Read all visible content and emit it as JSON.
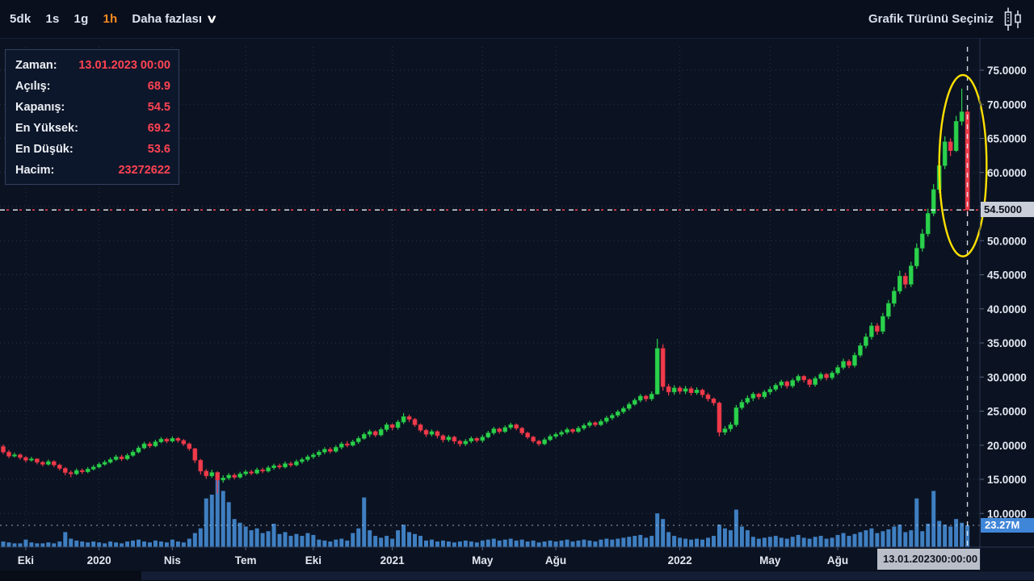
{
  "toolbar": {
    "intervals": [
      {
        "label": "5dk",
        "active": false
      },
      {
        "label": "1s",
        "active": false
      },
      {
        "label": "1g",
        "active": false
      },
      {
        "label": "1h",
        "active": true
      }
    ],
    "more_label": "Daha fazlası",
    "chart_type_label": "Grafik Türünü Seçiniz"
  },
  "info_panel": {
    "rows": [
      {
        "label": "Zaman:",
        "value": "13.01.2023 00:00"
      },
      {
        "label": "Açılış:",
        "value": "68.9"
      },
      {
        "label": "Kapanış:",
        "value": "54.5"
      },
      {
        "label": "En Yüksek:",
        "value": "69.2"
      },
      {
        "label": "En Düşük:",
        "value": "53.6"
      },
      {
        "label": "Hacim:",
        "value": "23272622"
      }
    ]
  },
  "badges": {
    "price": "54.5000",
    "volume": "23.27M",
    "date": "13.01.2023",
    "time": "00:00:00"
  },
  "colors": {
    "up": "#2bd14c",
    "up_stroke": "#1fae3c",
    "down": "#ef3b4b",
    "down_stroke": "#d32f3f",
    "volume_bar": "#3f7fc1",
    "accent_orange": "#ff8a1e",
    "value_red": "#ff4353",
    "annotation_yellow": "#ffe000",
    "axis_text": "#e3e8f1",
    "grid": "#3c4f74"
  },
  "chart_data": {
    "type": "candlestick",
    "price_ticks": [
      {
        "v": 75,
        "label": "75.0000"
      },
      {
        "v": 70,
        "label": "70.0000"
      },
      {
        "v": 65,
        "label": "65.0000"
      },
      {
        "v": 60,
        "label": "60.0000"
      },
      {
        "v": 55,
        "label": ""
      },
      {
        "v": 50,
        "label": "50.0000"
      },
      {
        "v": 45,
        "label": "45.0000"
      },
      {
        "v": 40,
        "label": "40.0000"
      },
      {
        "v": 35,
        "label": "35.0000"
      },
      {
        "v": 30,
        "label": "30.0000"
      },
      {
        "v": 25,
        "label": "25.0000"
      },
      {
        "v": 20,
        "label": "20.0000"
      },
      {
        "v": 15,
        "label": "15.0000"
      },
      {
        "v": 10,
        "label": "10.0000"
      }
    ],
    "x_ticks": [
      {
        "i": 4,
        "label": "Eki"
      },
      {
        "i": 17,
        "label": "2020"
      },
      {
        "i": 30,
        "label": "Nis"
      },
      {
        "i": 43,
        "label": "Tem"
      },
      {
        "i": 55,
        "label": "Eki"
      },
      {
        "i": 69,
        "label": "2021"
      },
      {
        "i": 85,
        "label": "May"
      },
      {
        "i": 98,
        "label": "Ağu"
      },
      {
        "i": 120,
        "label": "2022"
      },
      {
        "i": 136,
        "label": "May"
      },
      {
        "i": 148,
        "label": "Ağu"
      }
    ],
    "ylim": [
      5,
      78.4
    ],
    "crosshair": {
      "price": 54.5,
      "index": 171,
      "volume_m": 23.27
    },
    "annotation": {
      "type": "ellipse",
      "index": 170.2,
      "price": 61.0,
      "index_radius": 4.2,
      "price_radius": 13.3
    },
    "last_candle": {
      "time": "13.01.2023 00:00",
      "open": 68.9,
      "close": 54.5,
      "high": 69.2,
      "low": 53.6,
      "volume": 23272622
    },
    "candles": {
      "open_first": 19.8,
      "close": [
        19.0,
        18.4,
        18.6,
        18.2,
        17.8,
        18.0,
        17.5,
        17.2,
        17.6,
        17.1,
        16.6,
        16.0,
        15.8,
        16.3,
        16.1,
        16.5,
        16.8,
        17.2,
        17.5,
        17.9,
        18.3,
        18.0,
        18.5,
        19.0,
        19.6,
        20.2,
        19.9,
        20.5,
        20.9,
        20.6,
        21.0,
        20.7,
        20.2,
        19.5,
        17.8,
        16.2,
        15.5,
        16.0,
        14.9,
        15.2,
        15.6,
        15.3,
        15.8,
        16.1,
        15.9,
        16.4,
        16.2,
        16.7,
        17.0,
        16.8,
        17.3,
        17.1,
        17.6,
        17.9,
        18.3,
        18.6,
        19.0,
        19.4,
        19.1,
        19.7,
        20.2,
        20.0,
        20.5,
        21.0,
        21.6,
        22.0,
        21.5,
        22.3,
        23.0,
        22.6,
        23.4,
        24.2,
        23.8,
        23.0,
        22.2,
        21.6,
        22.0,
        21.4,
        20.8,
        21.2,
        20.6,
        20.2,
        20.6,
        21.0,
        20.7,
        21.2,
        21.8,
        22.4,
        22.0,
        22.6,
        23.0,
        22.5,
        21.8,
        21.2,
        20.6,
        20.2,
        20.8,
        21.3,
        21.6,
        21.9,
        22.3,
        22.0,
        22.5,
        22.9,
        23.3,
        23.0,
        23.5,
        24.0,
        24.4,
        24.9,
        25.4,
        26.0,
        26.6,
        27.2,
        26.8,
        27.5,
        34.2,
        28.6,
        27.8,
        28.4,
        27.9,
        28.3,
        27.7,
        28.1,
        27.4,
        26.8,
        26.2,
        21.9,
        22.4,
        23.0,
        25.5,
        26.3,
        26.9,
        27.5,
        27.1,
        27.8,
        28.2,
        28.8,
        29.3,
        28.7,
        29.5,
        30.1,
        29.6,
        28.9,
        29.8,
        30.4,
        29.9,
        30.6,
        31.4,
        32.3,
        31.7,
        33.2,
        34.6,
        35.9,
        37.5,
        36.7,
        38.9,
        40.8,
        42.6,
        44.8,
        43.6,
        46.3,
        48.9,
        51.0,
        54.0,
        57.5,
        61.0,
        64.5,
        63.2,
        67.5,
        68.9,
        54.5
      ],
      "high": [
        20.1,
        19.3,
        18.9,
        18.8,
        18.4,
        18.3,
        18.1,
        17.7,
        17.9,
        17.8,
        17.3,
        16.8,
        16.3,
        16.6,
        16.6,
        16.8,
        17.1,
        17.5,
        17.8,
        18.2,
        18.6,
        18.6,
        18.8,
        19.3,
        19.9,
        20.5,
        20.5,
        20.8,
        21.2,
        21.1,
        21.3,
        21.2,
        20.9,
        20.4,
        19.6,
        18.0,
        16.5,
        16.4,
        16.2,
        15.6,
        15.9,
        15.9,
        16.1,
        16.4,
        16.4,
        16.7,
        16.7,
        17.0,
        17.3,
        17.3,
        17.6,
        17.6,
        17.9,
        18.2,
        18.6,
        18.9,
        19.3,
        19.7,
        19.7,
        20.0,
        20.5,
        20.6,
        20.8,
        21.3,
        21.9,
        22.3,
        22.2,
        22.6,
        23.3,
        23.2,
        23.7,
        24.7,
        24.5,
        24.0,
        23.2,
        22.4,
        22.3,
        22.2,
        21.6,
        21.5,
        21.4,
        20.8,
        20.9,
        21.3,
        21.2,
        21.5,
        22.1,
        22.7,
        22.6,
        22.9,
        23.3,
        23.2,
        22.7,
        22.0,
        21.4,
        20.8,
        21.1,
        21.6,
        21.9,
        22.2,
        22.6,
        22.5,
        22.8,
        23.2,
        23.6,
        23.5,
        23.8,
        24.3,
        24.7,
        25.2,
        25.7,
        26.3,
        26.9,
        27.5,
        27.4,
        27.9,
        35.6,
        34.8,
        29.0,
        28.8,
        28.7,
        28.7,
        28.6,
        28.5,
        28.3,
        27.7,
        27.0,
        26.4,
        22.8,
        23.4,
        25.9,
        26.7,
        27.3,
        27.8,
        27.7,
        28.1,
        28.6,
        29.1,
        29.6,
        29.5,
        29.8,
        30.4,
        30.3,
        29.8,
        30.1,
        30.7,
        30.6,
        30.9,
        31.8,
        32.7,
        32.6,
        33.6,
        35.0,
        36.4,
        38.0,
        37.9,
        39.4,
        41.3,
        43.2,
        45.6,
        45.3,
        46.9,
        49.6,
        51.7,
        54.7,
        58.3,
        61.8,
        65.3,
        65.0,
        68.3,
        72.3,
        69.2
      ],
      "low": [
        18.7,
        18.1,
        18.2,
        17.9,
        17.5,
        17.6,
        17.2,
        16.9,
        17.0,
        16.8,
        16.3,
        15.6,
        15.3,
        15.6,
        15.8,
        15.9,
        16.3,
        16.6,
        17.0,
        17.3,
        17.7,
        17.7,
        17.8,
        18.3,
        18.8,
        19.4,
        19.6,
        19.7,
        20.3,
        20.3,
        20.4,
        20.4,
        19.9,
        19.2,
        17.4,
        15.7,
        15.1,
        15.2,
        12.9,
        14.5,
        14.9,
        15.0,
        15.1,
        15.5,
        15.6,
        15.7,
        15.9,
        16.0,
        16.4,
        16.5,
        16.6,
        16.8,
        16.9,
        17.3,
        17.6,
        18.0,
        18.3,
        18.7,
        18.8,
        18.9,
        19.4,
        19.7,
        19.8,
        20.2,
        20.8,
        21.2,
        21.2,
        21.3,
        22.0,
        22.2,
        22.3,
        23.1,
        23.4,
        22.7,
        21.9,
        21.2,
        21.3,
        21.0,
        20.4,
        20.5,
        20.2,
        19.8,
        19.9,
        20.3,
        20.4,
        20.4,
        21.0,
        21.5,
        21.7,
        21.8,
        22.3,
        22.2,
        21.5,
        20.9,
        20.3,
        19.9,
        20.0,
        20.6,
        21.0,
        21.3,
        21.6,
        21.7,
        21.8,
        22.2,
        22.6,
        22.7,
        22.8,
        23.2,
        23.7,
        24.1,
        24.6,
        25.1,
        25.8,
        26.3,
        26.4,
        26.5,
        27.4,
        28.0,
        27.3,
        27.4,
        27.5,
        27.5,
        27.3,
        27.4,
        27.0,
        26.4,
        25.8,
        21.3,
        21.5,
        22.0,
        22.7,
        25.2,
        26.0,
        26.5,
        26.7,
        26.8,
        27.4,
        27.9,
        28.4,
        28.3,
        28.4,
        29.2,
        29.2,
        28.5,
        28.6,
        29.5,
        29.5,
        29.6,
        30.3,
        31.1,
        31.3,
        31.4,
        32.9,
        34.2,
        35.5,
        36.2,
        36.3,
        38.5,
        40.3,
        42.2,
        43.0,
        43.2,
        45.9,
        48.4,
        50.6,
        53.6,
        57.0,
        60.5,
        62.4,
        63.0,
        66.9,
        53.6
      ],
      "volume_m": [
        6,
        5,
        4,
        4,
        8,
        5,
        4,
        4,
        5,
        4,
        6,
        16,
        9,
        7,
        6,
        5,
        6,
        5,
        4,
        6,
        5,
        4,
        6,
        7,
        8,
        6,
        5,
        7,
        6,
        5,
        8,
        6,
        5,
        9,
        15,
        20,
        52,
        56,
        80,
        60,
        48,
        30,
        26,
        22,
        18,
        20,
        15,
        17,
        25,
        14,
        16,
        12,
        14,
        12,
        15,
        13,
        8,
        7,
        6,
        8,
        9,
        7,
        15,
        20,
        53,
        18,
        12,
        10,
        12,
        9,
        18,
        24,
        16,
        14,
        12,
        7,
        8,
        6,
        7,
        6,
        5,
        6,
        7,
        6,
        5,
        7,
        8,
        9,
        7,
        8,
        9,
        7,
        8,
        6,
        7,
        5,
        6,
        7,
        6,
        7,
        8,
        6,
        7,
        8,
        7,
        6,
        8,
        9,
        8,
        9,
        10,
        11,
        12,
        13,
        10,
        12,
        36,
        30,
        16,
        12,
        10,
        9,
        8,
        9,
        8,
        10,
        12,
        24,
        20,
        18,
        40,
        22,
        18,
        11,
        9,
        10,
        11,
        12,
        10,
        9,
        11,
        13,
        10,
        9,
        11,
        12,
        9,
        10,
        13,
        15,
        12,
        14,
        16,
        18,
        20,
        15,
        17,
        19,
        22,
        24,
        16,
        18,
        52,
        17,
        25,
        60,
        28,
        24,
        22,
        30,
        26,
        23.27
      ]
    }
  }
}
